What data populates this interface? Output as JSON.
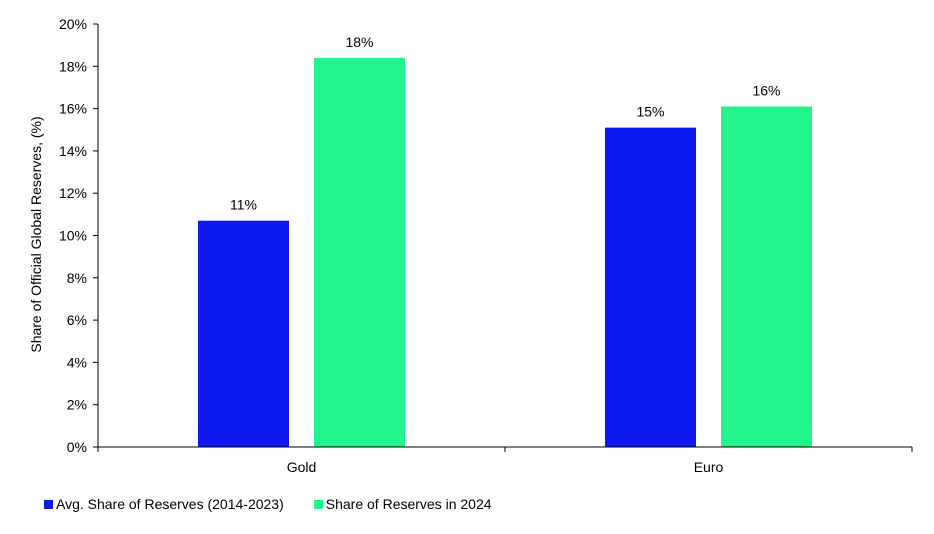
{
  "chart_data": {
    "type": "bar",
    "categories": [
      "Gold",
      "Euro"
    ],
    "series": [
      {
        "name": "Avg. Share of Reserves (2014-2023)",
        "values": [
          10.7,
          15.1
        ],
        "labels": [
          "11%",
          "15%"
        ],
        "color": "#0d19f0"
      },
      {
        "name": "Share of Reserves in 2024",
        "values": [
          18.4,
          16.1
        ],
        "labels": [
          "18%",
          "16%"
        ],
        "color": "#22f58c"
      }
    ],
    "title": "",
    "xlabel": "",
    "ylabel": "Share of Official Global Reserves, (%)",
    "ylim": [
      0,
      20
    ],
    "yticks": [
      0,
      2,
      4,
      6,
      8,
      10,
      12,
      14,
      16,
      18,
      20
    ],
    "ytick_labels": [
      "0%",
      "2%",
      "4%",
      "6%",
      "8%",
      "10%",
      "12%",
      "14%",
      "16%",
      "18%",
      "20%"
    ],
    "grid": false,
    "legend_position": "bottom-left"
  }
}
